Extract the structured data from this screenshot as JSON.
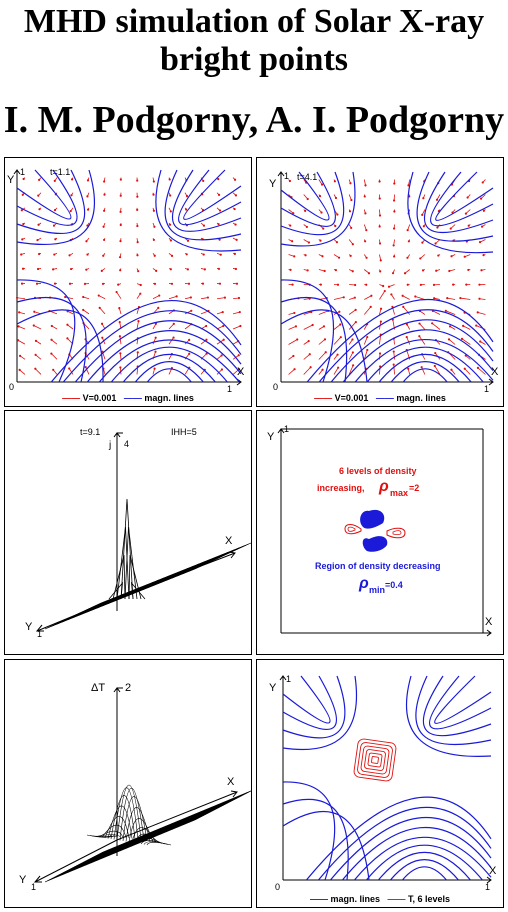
{
  "title_line1": "MHD simulation of Solar X-ray",
  "title_line2": "bright points",
  "authors": "I. M. Podgorny, A. I. Podgorny",
  "panels": {
    "p1": {
      "time": "t=1.1",
      "y_axis": "Y",
      "y_tick": "1",
      "x_axis": "X",
      "x_tick": "1",
      "origin": "0",
      "legend_velocity": "V=0.001",
      "legend_field": "magn. lines"
    },
    "p2": {
      "time": "t=4.1",
      "y_axis": "Y",
      "y_tick": "1",
      "x_axis": "X",
      "x_tick": "1",
      "origin": "0",
      "legend_velocity": "V=0.001",
      "legend_field": "magn. lines"
    },
    "p3": {
      "time": "t=9.1",
      "label_ihh": "IHH=5",
      "z_axis": "j",
      "z_tick": "4",
      "x_axis": "X",
      "y_axis": "Y",
      "y_tick": "1"
    },
    "p4": {
      "y_axis": "Y",
      "y_tick": "1",
      "x_axis": "X",
      "text_levels_1": "6 levels of density",
      "text_levels_2": "increasing,",
      "rho_max": "ρ",
      "rho_max_sub": "max",
      "rho_max_val": "=2",
      "text_region": "Region of density decreasing",
      "rho_min": "ρ",
      "rho_min_sub": "min",
      "rho_min_val": "=0.4"
    },
    "p5": {
      "z_axis": "ΔT",
      "z_tick": "2",
      "x_axis": "X",
      "y_axis": "Y",
      "y_tick": "1"
    },
    "p6": {
      "y_axis": "Y",
      "y_tick": "1",
      "x_axis": "X",
      "x_tick": "1",
      "origin": "0",
      "legend_field": "magn. lines",
      "legend_temp": "T, 6 levels"
    }
  },
  "colors": {
    "field_lines": "#1a1ad8",
    "velocity": "#e01010",
    "density_blue": "#1a1ad8",
    "density_red": "#e01010"
  }
}
